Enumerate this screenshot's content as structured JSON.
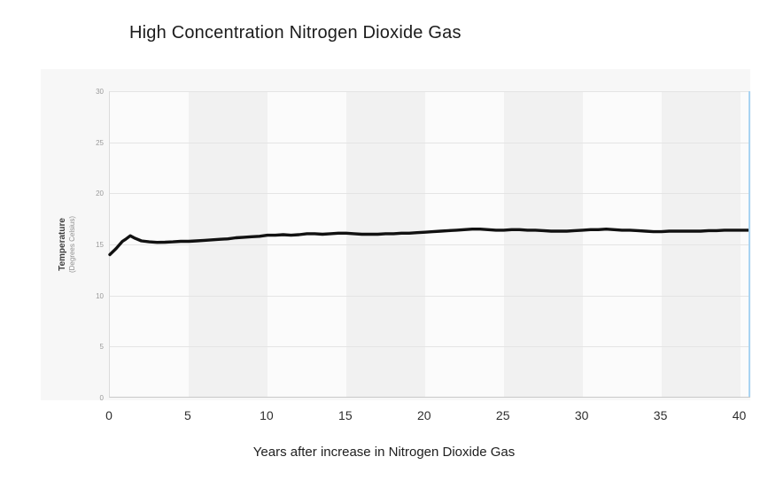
{
  "chart_data": {
    "type": "line",
    "title": "High Concentration Nitrogen Dioxide Gas",
    "xlabel": "Years after increase in Nitrogen Dioxide Gas",
    "ylabel": "Temperature",
    "ylabel_sub": "(Degrees Celsius)",
    "xlim": [
      0,
      40.7
    ],
    "ylim": [
      0,
      30
    ],
    "x_ticks": [
      0,
      5,
      10,
      15,
      20,
      25,
      30,
      35,
      40
    ],
    "y_ticks": [
      0,
      5,
      10,
      15,
      20,
      25,
      30
    ],
    "grid": "horizontal",
    "legend": "none",
    "band_interval": 5,
    "band_colors": [
      "#fbfbfb",
      "#f1f1f1"
    ],
    "panel_bg": "#f7f7f7",
    "cursor_x": 40.58,
    "cursor_color": "#a9d4f2",
    "series": [
      {
        "name": "Temperature",
        "color": "#111111",
        "x": [
          0,
          0.4,
          0.8,
          1,
          1.3,
          1.6,
          2,
          2.5,
          3,
          3.5,
          4,
          4.5,
          5,
          5.5,
          6,
          6.5,
          7,
          7.5,
          8,
          8.5,
          9,
          9.5,
          10,
          10.5,
          11,
          11.5,
          12,
          12.5,
          13,
          13.5,
          14,
          14.5,
          15,
          15.5,
          16,
          16.5,
          17,
          17.5,
          18,
          18.5,
          19,
          19.5,
          20,
          20.5,
          21,
          21.5,
          22,
          22.5,
          23,
          23.5,
          24,
          24.5,
          25,
          25.5,
          26,
          26.5,
          27,
          27.5,
          28,
          28.5,
          29,
          29.5,
          30,
          30.5,
          31,
          31.5,
          32,
          32.5,
          33,
          33.5,
          34,
          34.5,
          35,
          35.5,
          36,
          36.5,
          37,
          37.5,
          38,
          38.5,
          39,
          39.5,
          40,
          40.5
        ],
        "y": [
          14.0,
          14.6,
          15.3,
          15.5,
          15.85,
          15.6,
          15.35,
          15.25,
          15.2,
          15.22,
          15.25,
          15.3,
          15.3,
          15.35,
          15.4,
          15.45,
          15.5,
          15.55,
          15.65,
          15.7,
          15.75,
          15.8,
          15.9,
          15.9,
          15.95,
          15.9,
          15.95,
          16.05,
          16.05,
          16.0,
          16.05,
          16.1,
          16.1,
          16.05,
          16.0,
          16.0,
          16.0,
          16.05,
          16.05,
          16.1,
          16.1,
          16.15,
          16.2,
          16.25,
          16.3,
          16.35,
          16.4,
          16.45,
          16.5,
          16.5,
          16.45,
          16.4,
          16.4,
          16.45,
          16.45,
          16.4,
          16.4,
          16.35,
          16.3,
          16.3,
          16.3,
          16.35,
          16.4,
          16.45,
          16.45,
          16.5,
          16.45,
          16.4,
          16.4,
          16.35,
          16.3,
          16.25,
          16.25,
          16.3,
          16.3,
          16.3,
          16.3,
          16.3,
          16.35,
          16.35,
          16.4,
          16.4,
          16.4,
          16.4
        ]
      }
    ]
  }
}
